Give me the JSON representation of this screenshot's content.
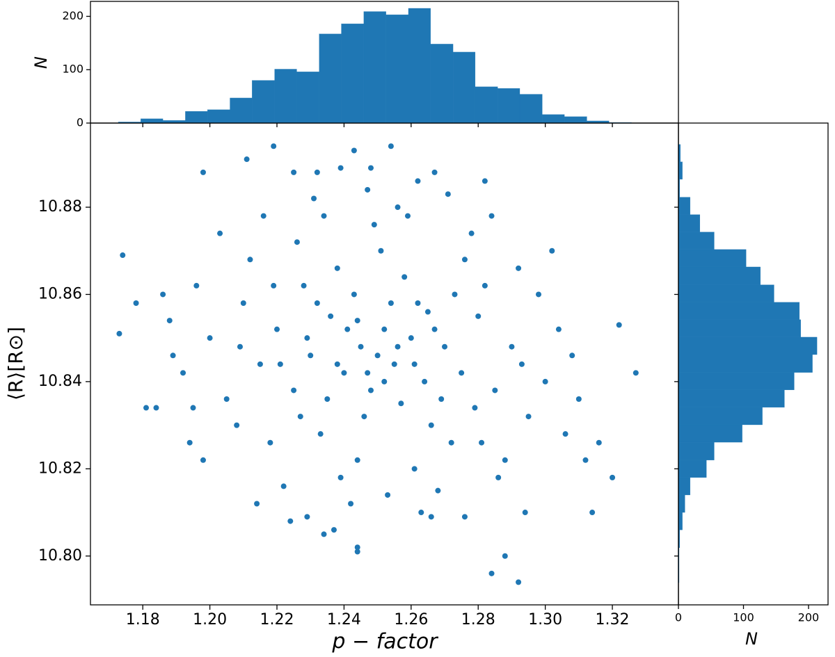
{
  "chart_data": [
    {
      "type": "scatter",
      "color": "#1f77b4",
      "xlabel": "p − factor",
      "ylabel": "⟨R⟩[R⊙]",
      "xlim": [
        1.1644,
        1.3397
      ],
      "ylim": [
        10.7888,
        10.8993
      ],
      "xticks": [
        1.18,
        {
          "value": 1.2,
          "label": "1.20"
        },
        1.22,
        1.24,
        1.26,
        1.28,
        {
          "value": 1.3,
          "label": "1.30"
        },
        1.32
      ],
      "yticks": [
        {
          "value": 10.8,
          "label": "10.80"
        },
        10.82,
        10.84,
        10.86,
        10.88
      ],
      "x": [
        1.173,
        1.174,
        1.327,
        1.316,
        1.292,
        1.284,
        1.288,
        1.244,
        1.244,
        1.234,
        1.219,
        1.254,
        1.243,
        1.211,
        1.198,
        1.225,
        1.232,
        1.239,
        1.248,
        1.262,
        1.267,
        1.282,
        1.314,
        1.32,
        1.322,
        1.181,
        1.184,
        1.189,
        1.178,
        1.194,
        1.266,
        1.276,
        1.294,
        1.229,
        1.25,
        1.245,
        1.255,
        1.24,
        1.26,
        1.252,
        1.248,
        1.236,
        1.264,
        1.243,
        1.257,
        1.23,
        1.27,
        1.246,
        1.238,
        1.262,
        1.225,
        1.275,
        1.251,
        1.233,
        1.266,
        1.22,
        1.28,
        1.244,
        1.258,
        1.228,
        1.272,
        1.215,
        1.285,
        1.249,
        1.239,
        1.261,
        1.21,
        1.29,
        1.226,
        1.276,
        1.205,
        1.295,
        1.234,
        1.268,
        1.218,
        1.282,
        1.2,
        1.3,
        1.242,
        1.256,
        1.212,
        1.288,
        1.222,
        1.278,
        1.196,
        1.304,
        1.231,
        1.263,
        1.208,
        1.292,
        1.216,
        1.286,
        1.192,
        1.306,
        1.247,
        1.253,
        1.203,
        1.298,
        1.224,
        1.271,
        1.188,
        1.31,
        1.237,
        1.259,
        1.198,
        1.302,
        1.214,
        1.284,
        1.235,
        1.265,
        1.241,
        1.254,
        1.229,
        1.269,
        1.247,
        1.256,
        1.238,
        1.261,
        1.244,
        1.252,
        1.232,
        1.267,
        1.221,
        1.279,
        1.209,
        1.293,
        1.227,
        1.273,
        1.219,
        1.281,
        1.195,
        1.308,
        1.186,
        1.312
      ],
      "y": [
        10.851,
        10.869,
        10.842,
        10.826,
        10.794,
        10.796,
        10.8,
        10.802,
        10.801,
        10.805,
        10.894,
        10.894,
        10.893,
        10.891,
        10.888,
        10.888,
        10.888,
        10.889,
        10.889,
        10.886,
        10.888,
        10.886,
        10.81,
        10.818,
        10.853,
        10.834,
        10.834,
        10.846,
        10.858,
        10.826,
        10.809,
        10.809,
        10.81,
        10.809,
        10.846,
        10.848,
        10.844,
        10.842,
        10.85,
        10.852,
        10.838,
        10.855,
        10.84,
        10.86,
        10.835,
        10.846,
        10.848,
        10.832,
        10.866,
        10.858,
        10.838,
        10.842,
        10.87,
        10.828,
        10.83,
        10.852,
        10.855,
        10.822,
        10.864,
        10.862,
        10.826,
        10.844,
        10.838,
        10.876,
        10.818,
        10.82,
        10.858,
        10.848,
        10.872,
        10.868,
        10.836,
        10.832,
        10.878,
        10.815,
        10.826,
        10.862,
        10.85,
        10.84,
        10.812,
        10.88,
        10.868,
        10.822,
        10.816,
        10.874,
        10.862,
        10.852,
        10.882,
        10.81,
        10.83,
        10.866,
        10.878,
        10.818,
        10.842,
        10.828,
        10.884,
        10.814,
        10.874,
        10.86,
        10.808,
        10.883,
        10.854,
        10.836,
        10.806,
        10.878,
        10.822,
        10.87,
        10.812,
        10.878,
        10.836,
        10.856,
        10.852,
        10.858,
        10.85,
        10.836,
        10.842,
        10.848,
        10.844,
        10.844,
        10.854,
        10.84,
        10.858,
        10.852,
        10.844,
        10.834,
        10.848,
        10.844,
        10.832,
        10.86,
        10.862,
        10.826,
        10.834,
        10.846,
        10.86,
        10.822
      ]
    },
    {
      "type": "histogram",
      "orientation": "vertical",
      "color": "#1f77b4",
      "ylabel": "N",
      "ylim": [
        0,
        228
      ],
      "yticks": [
        0,
        100,
        200
      ],
      "bins": [
        1.1727,
        1.1794,
        1.186,
        1.1927,
        1.1993,
        1.206,
        1.2126,
        1.2193,
        1.2259,
        1.2326,
        1.2392,
        1.2459,
        1.2525,
        1.2592,
        1.2658,
        1.2725,
        1.2791,
        1.2858,
        1.2924,
        1.2991,
        1.3057,
        1.3124,
        1.319,
        1.3257
      ],
      "values": [
        2,
        8,
        5,
        22,
        25,
        47,
        80,
        101,
        96,
        167,
        186,
        209,
        203,
        215,
        148,
        133,
        68,
        65,
        54,
        16,
        12,
        4,
        1
      ]
    },
    {
      "type": "histogram",
      "orientation": "horizontal",
      "color": "#1f77b4",
      "xlabel": "N",
      "xlim": [
        0,
        230
      ],
      "xticks": [
        0,
        100,
        200
      ],
      "bins": [
        10.7939,
        10.7979,
        10.8019,
        10.806,
        10.81,
        10.814,
        10.818,
        10.822,
        10.8261,
        10.8301,
        10.8341,
        10.8381,
        10.8421,
        10.8462,
        10.8502,
        10.8542,
        10.8582,
        10.8622,
        10.8663,
        10.8703,
        10.8743,
        10.8783,
        10.8823,
        10.8864,
        10.8904,
        10.8944
      ],
      "values": [
        1,
        1,
        2,
        6,
        10,
        18,
        43,
        55,
        98,
        129,
        163,
        178,
        206,
        213,
        188,
        186,
        147,
        126,
        104,
        55,
        33,
        18,
        2,
        6,
        3
      ]
    }
  ]
}
